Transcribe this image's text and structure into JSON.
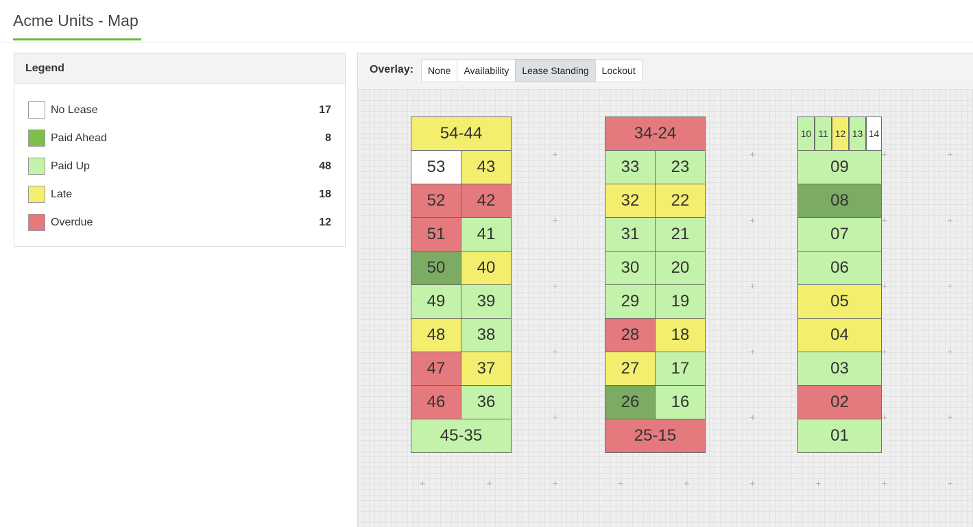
{
  "page": {
    "title": "Acme Units - Map"
  },
  "legend": {
    "title": "Legend",
    "items": [
      {
        "key": "no_lease",
        "label": "No Lease",
        "count": "17",
        "color": "#ffffff"
      },
      {
        "key": "paid_ahead",
        "label": "Paid Ahead",
        "count": "8",
        "color": "#7cc04b"
      },
      {
        "key": "paid_up",
        "label": "Paid Up",
        "count": "48",
        "color": "#c3f2aa"
      },
      {
        "key": "late",
        "label": "Late",
        "count": "18",
        "color": "#f4ee6e"
      },
      {
        "key": "overdue",
        "label": "Overdue",
        "count": "12",
        "color": "#e47a7d"
      }
    ]
  },
  "overlay": {
    "label": "Overlay:",
    "options": [
      "None",
      "Availability",
      "Lease Standing",
      "Lockout"
    ],
    "selected": "Lease Standing"
  },
  "map": {
    "buildings": [
      {
        "units": [
          {
            "label": "54-44",
            "status": "late"
          },
          {
            "label": "53",
            "status": "no_lease"
          },
          {
            "label": "43",
            "status": "late"
          },
          {
            "label": "52",
            "status": "overdue"
          },
          {
            "label": "42",
            "status": "overdue"
          },
          {
            "label": "51",
            "status": "overdue"
          },
          {
            "label": "41",
            "status": "paid_up"
          },
          {
            "label": "50",
            "status": "paid_ahead"
          },
          {
            "label": "40",
            "status": "late"
          },
          {
            "label": "49",
            "status": "paid_up"
          },
          {
            "label": "39",
            "status": "paid_up"
          },
          {
            "label": "48",
            "status": "late"
          },
          {
            "label": "38",
            "status": "paid_up"
          },
          {
            "label": "47",
            "status": "overdue"
          },
          {
            "label": "37",
            "status": "late"
          },
          {
            "label": "46",
            "status": "overdue"
          },
          {
            "label": "36",
            "status": "paid_up"
          },
          {
            "label": "45-35",
            "status": "paid_up"
          }
        ]
      },
      {
        "units": [
          {
            "label": "34-24",
            "status": "overdue"
          },
          {
            "label": "33",
            "status": "paid_up"
          },
          {
            "label": "23",
            "status": "paid_up"
          },
          {
            "label": "32",
            "status": "late"
          },
          {
            "label": "22",
            "status": "late"
          },
          {
            "label": "31",
            "status": "paid_up"
          },
          {
            "label": "21",
            "status": "paid_up"
          },
          {
            "label": "30",
            "status": "paid_up"
          },
          {
            "label": "20",
            "status": "paid_up"
          },
          {
            "label": "29",
            "status": "paid_up"
          },
          {
            "label": "19",
            "status": "paid_up"
          },
          {
            "label": "28",
            "status": "overdue"
          },
          {
            "label": "18",
            "status": "late"
          },
          {
            "label": "27",
            "status": "late"
          },
          {
            "label": "17",
            "status": "paid_up"
          },
          {
            "label": "26",
            "status": "paid_ahead"
          },
          {
            "label": "16",
            "status": "paid_up"
          },
          {
            "label": "25-15",
            "status": "overdue"
          }
        ]
      },
      {
        "units": [
          {
            "label": "10",
            "status": "paid_up"
          },
          {
            "label": "11",
            "status": "paid_up"
          },
          {
            "label": "12",
            "status": "late"
          },
          {
            "label": "13",
            "status": "paid_up"
          },
          {
            "label": "14",
            "status": "no_lease"
          },
          {
            "label": "09",
            "status": "paid_up"
          },
          {
            "label": "08",
            "status": "paid_ahead"
          },
          {
            "label": "07",
            "status": "paid_up"
          },
          {
            "label": "06",
            "status": "paid_up"
          },
          {
            "label": "05",
            "status": "late"
          },
          {
            "label": "04",
            "status": "late"
          },
          {
            "label": "03",
            "status": "paid_up"
          },
          {
            "label": "02",
            "status": "overdue"
          },
          {
            "label": "01",
            "status": "paid_up"
          }
        ]
      }
    ]
  }
}
